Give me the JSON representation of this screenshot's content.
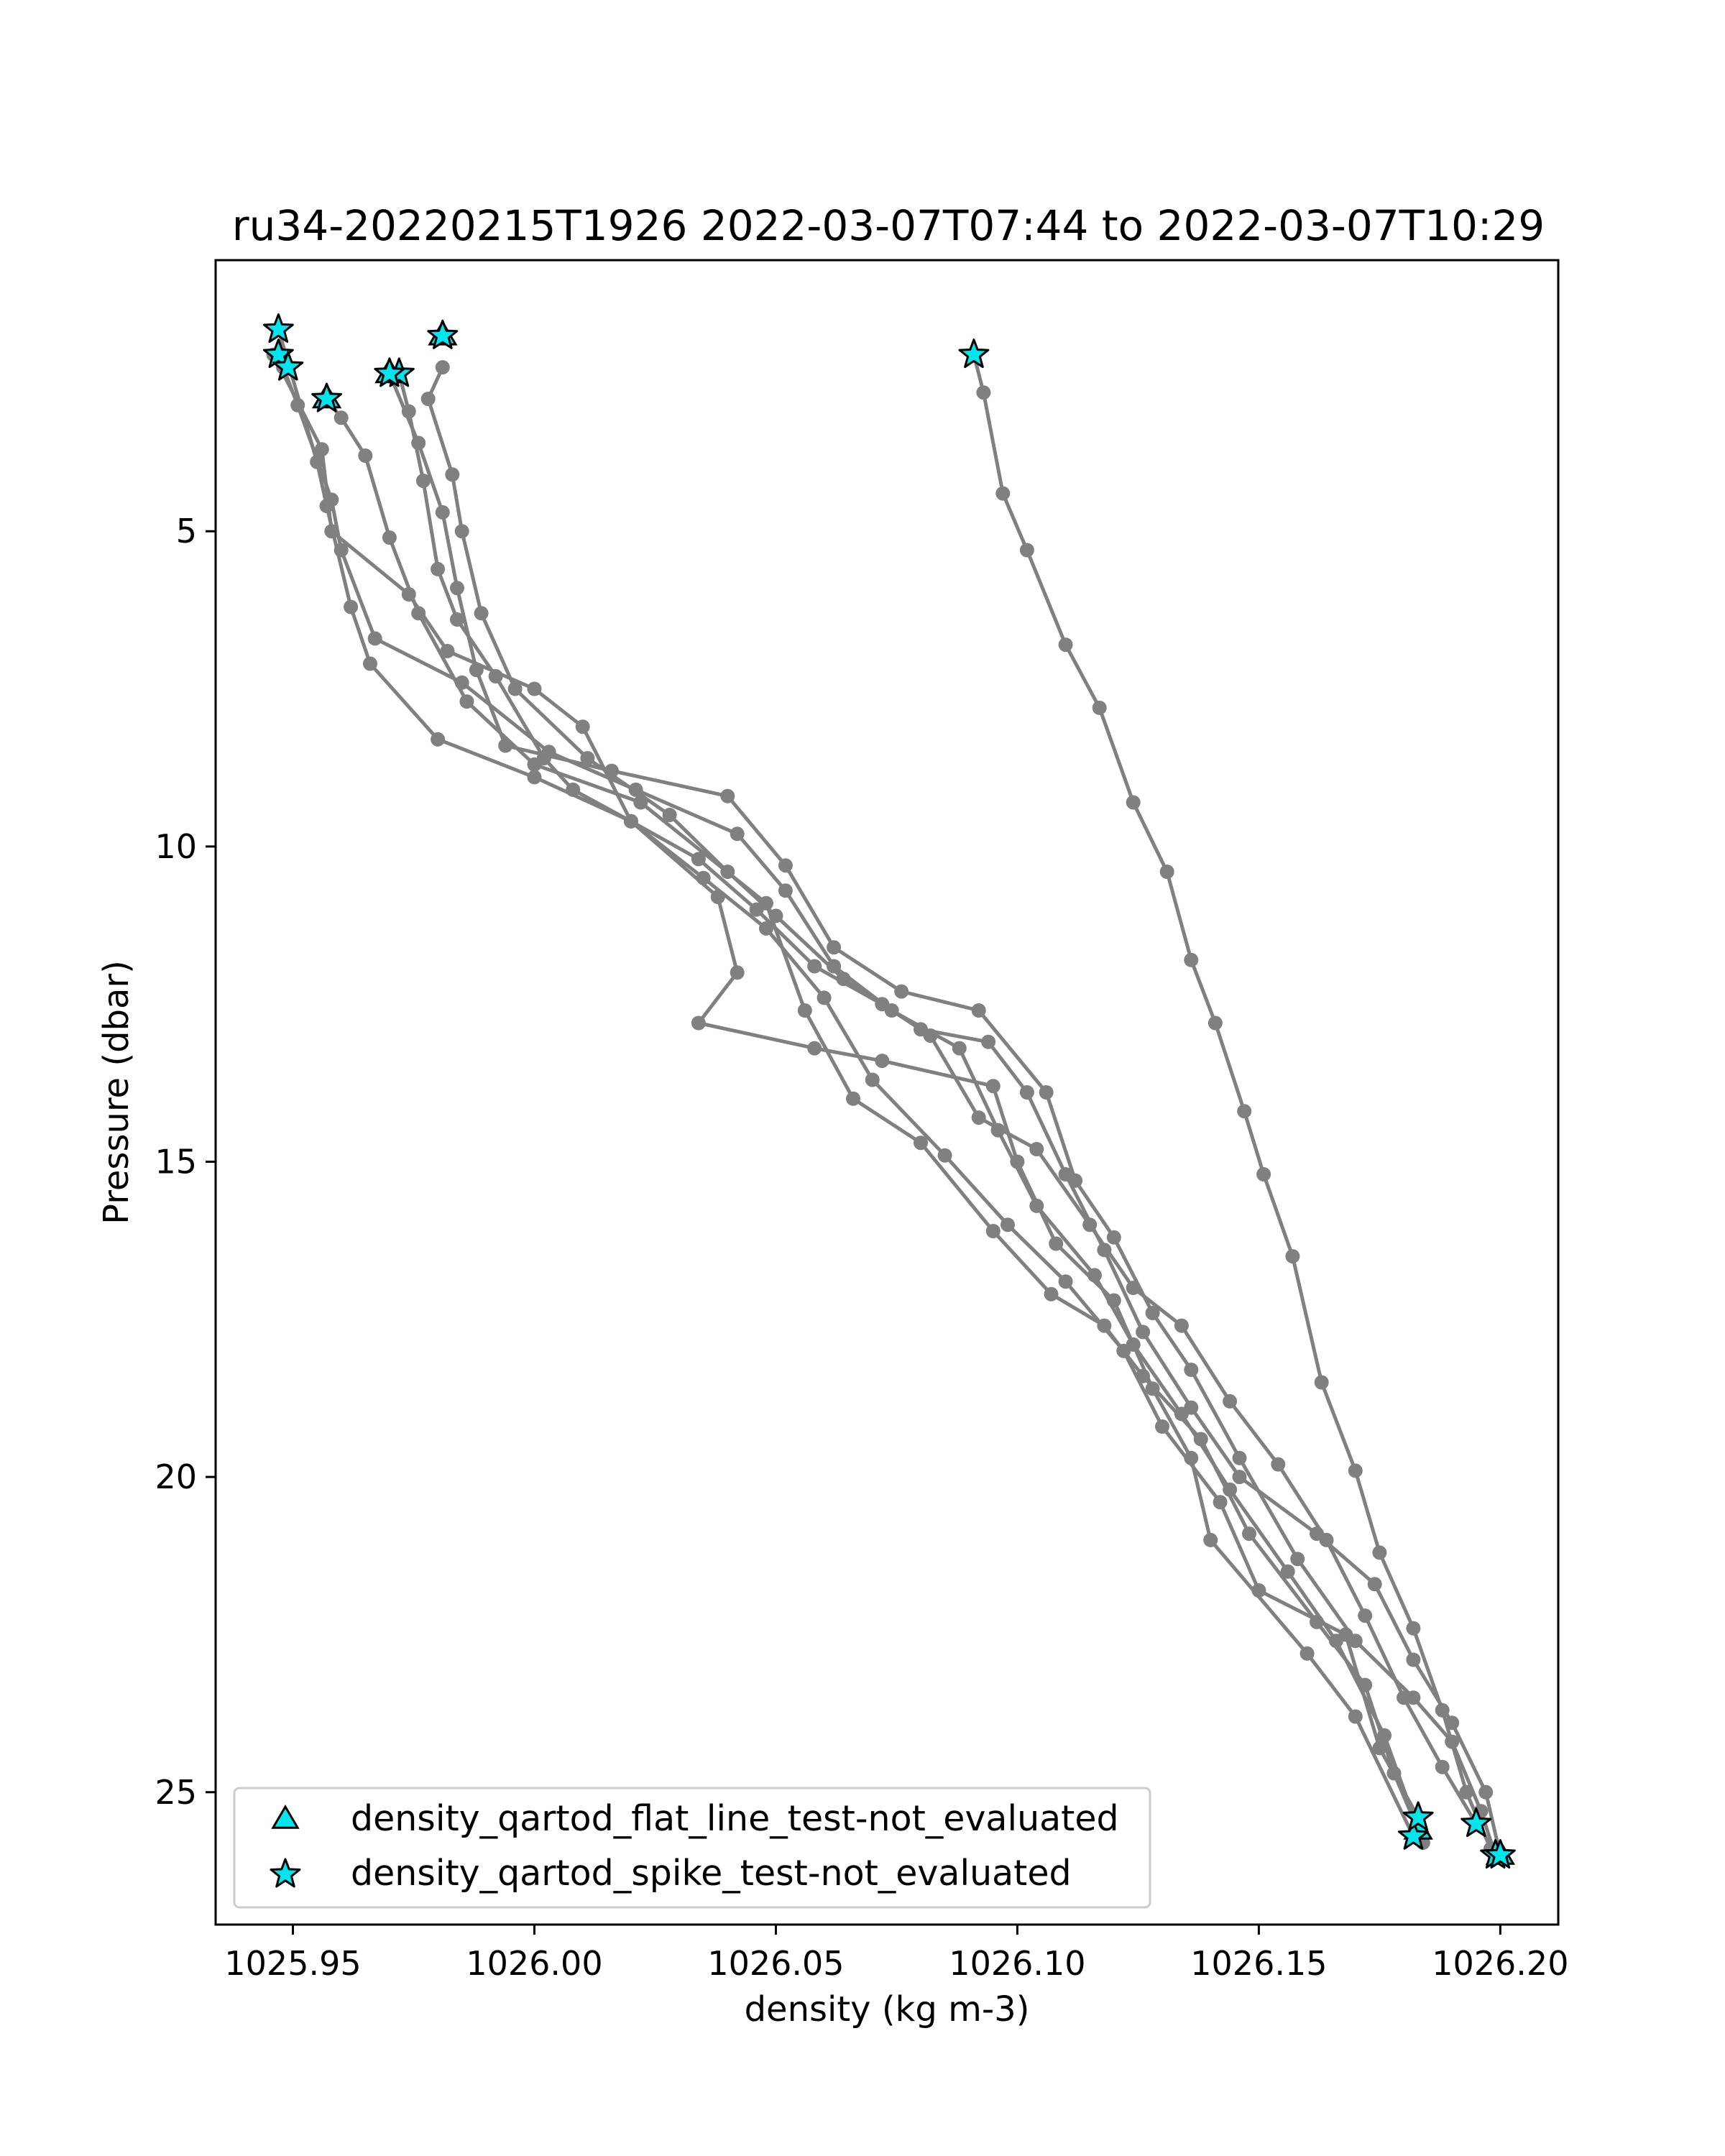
{
  "chart_data": {
    "type": "line",
    "title": "ru34-20220215T1926 2022-03-07T07:44 to 2022-03-07T10:29",
    "xlabel": "density (kg m-3)",
    "ylabel": "Pressure (dbar)",
    "xlim": [
      1025.934,
      1026.212
    ],
    "ylim": [
      27.1,
      0.7
    ],
    "y_inverted": true,
    "grid": false,
    "legend_position": "lower left",
    "xticks": [
      1025.95,
      1026.0,
      1026.05,
      1026.1,
      1026.15,
      1026.2
    ],
    "xtick_labels": [
      "1025.95",
      "1026.00",
      "1026.05",
      "1026.10",
      "1026.15",
      "1026.20"
    ],
    "yticks": [
      5,
      10,
      15,
      20,
      25
    ],
    "ytick_labels": [
      "5",
      "10",
      "15",
      "20",
      "25"
    ],
    "colors": {
      "profile_line": "#808080",
      "marker_fill": "#00e5ee",
      "marker_edge": "#000000"
    },
    "legend": [
      {
        "label": "density_qartod_flat_line_test-not_evaluated",
        "marker": "triangle"
      },
      {
        "label": "density_qartod_spike_test-not_evaluated",
        "marker": "star"
      }
    ],
    "series": [
      {
        "points": [
          [
            1025.947,
            1.8
          ],
          [
            1025.955,
            3.9
          ],
          [
            1025.957,
            4.6
          ],
          [
            1025.962,
            6.2
          ],
          [
            1025.966,
            7.1
          ],
          [
            1025.98,
            8.3
          ],
          [
            1026.0,
            8.9
          ],
          [
            1026.02,
            9.6
          ],
          [
            1026.038,
            10.8
          ],
          [
            1026.042,
            12.0
          ],
          [
            1026.034,
            12.8
          ],
          [
            1026.058,
            13.2
          ],
          [
            1026.072,
            13.4
          ],
          [
            1026.095,
            13.8
          ],
          [
            1026.1,
            15.0
          ],
          [
            1026.108,
            16.3
          ],
          [
            1026.12,
            17.2
          ],
          [
            1026.128,
            18.6
          ],
          [
            1026.136,
            19.7
          ],
          [
            1026.14,
            21.0
          ],
          [
            1026.16,
            22.8
          ],
          [
            1026.17,
            23.8
          ],
          [
            1026.182,
            25.7
          ]
        ]
      },
      {
        "points": [
          [
            1025.946,
            2.2
          ],
          [
            1025.956,
            3.7
          ],
          [
            1025.958,
            5.0
          ],
          [
            1025.974,
            6.0
          ],
          [
            1025.982,
            6.9
          ],
          [
            1026.0,
            7.5
          ],
          [
            1026.01,
            8.1
          ],
          [
            1026.02,
            9.6
          ],
          [
            1026.035,
            10.5
          ],
          [
            1026.048,
            11.3
          ],
          [
            1026.06,
            12.4
          ],
          [
            1026.07,
            13.7
          ],
          [
            1026.085,
            14.9
          ],
          [
            1026.098,
            16.0
          ],
          [
            1026.11,
            16.9
          ],
          [
            1026.122,
            18.0
          ],
          [
            1026.13,
            19.2
          ],
          [
            1026.142,
            20.4
          ],
          [
            1026.15,
            21.8
          ],
          [
            1026.168,
            22.5
          ],
          [
            1026.175,
            24.3
          ],
          [
            1026.183,
            25.4
          ]
        ]
      },
      {
        "points": [
          [
            1025.948,
            2.4
          ],
          [
            1025.951,
            3.0
          ],
          [
            1025.958,
            4.5
          ],
          [
            1025.96,
            5.3
          ],
          [
            1025.967,
            6.7
          ],
          [
            1025.985,
            7.4
          ],
          [
            1026.003,
            8.5
          ],
          [
            1026.021,
            9.1
          ],
          [
            1026.042,
            9.8
          ],
          [
            1026.052,
            10.7
          ],
          [
            1026.062,
            11.9
          ],
          [
            1026.074,
            12.6
          ],
          [
            1026.088,
            13.2
          ],
          [
            1026.096,
            14.5
          ],
          [
            1026.104,
            15.7
          ],
          [
            1026.116,
            16.8
          ],
          [
            1026.124,
            17.9
          ],
          [
            1026.134,
            19.0
          ],
          [
            1026.144,
            20.2
          ],
          [
            1026.156,
            21.5
          ],
          [
            1026.166,
            22.6
          ],
          [
            1026.176,
            24.1
          ],
          [
            1026.184,
            25.8
          ]
        ]
      },
      {
        "points": [
          [
            1025.957,
            2.9
          ],
          [
            1025.96,
            3.2
          ],
          [
            1025.965,
            3.8
          ],
          [
            1025.97,
            5.1
          ],
          [
            1025.976,
            6.3
          ],
          [
            1025.986,
            7.7
          ],
          [
            1026.0,
            8.7
          ],
          [
            1026.022,
            9.3
          ],
          [
            1026.048,
            10.9
          ],
          [
            1026.056,
            12.6
          ],
          [
            1026.066,
            14.0
          ],
          [
            1026.08,
            14.7
          ],
          [
            1026.095,
            16.1
          ],
          [
            1026.107,
            17.1
          ],
          [
            1026.118,
            17.6
          ],
          [
            1026.126,
            18.4
          ],
          [
            1026.138,
            19.4
          ],
          [
            1026.148,
            20.9
          ],
          [
            1026.162,
            22.3
          ],
          [
            1026.172,
            23.3
          ],
          [
            1026.178,
            24.7
          ],
          [
            1026.183,
            25.6
          ]
        ]
      },
      {
        "points": [
          [
            1025.972,
            2.5
          ],
          [
            1025.974,
            3.1
          ],
          [
            1025.977,
            4.2
          ],
          [
            1025.98,
            5.6
          ],
          [
            1025.984,
            6.4
          ],
          [
            1025.992,
            7.3
          ],
          [
            1026.002,
            8.6
          ],
          [
            1026.008,
            9.1
          ],
          [
            1026.02,
            9.6
          ],
          [
            1026.034,
            10.2
          ],
          [
            1026.046,
            11.0
          ],
          [
            1026.058,
            11.9
          ],
          [
            1026.072,
            12.5
          ],
          [
            1026.082,
            13.0
          ],
          [
            1026.092,
            14.3
          ],
          [
            1026.104,
            14.8
          ],
          [
            1026.115,
            16.0
          ],
          [
            1026.124,
            17.0
          ],
          [
            1026.134,
            17.6
          ],
          [
            1026.144,
            18.8
          ],
          [
            1026.154,
            19.8
          ],
          [
            1026.164,
            21.0
          ],
          [
            1026.172,
            22.2
          ],
          [
            1026.18,
            23.5
          ],
          [
            1026.188,
            24.6
          ],
          [
            1026.195,
            25.5
          ]
        ]
      },
      {
        "points": [
          [
            1025.97,
            2.5
          ],
          [
            1025.976,
            3.6
          ],
          [
            1025.981,
            4.7
          ],
          [
            1025.984,
            5.9
          ],
          [
            1025.988,
            7.2
          ],
          [
            1025.994,
            8.4
          ],
          [
            1026.016,
            8.8
          ],
          [
            1026.04,
            9.2
          ],
          [
            1026.052,
            10.3
          ],
          [
            1026.062,
            11.6
          ],
          [
            1026.076,
            12.3
          ],
          [
            1026.092,
            12.6
          ],
          [
            1026.106,
            13.9
          ],
          [
            1026.112,
            15.3
          ],
          [
            1026.12,
            16.2
          ],
          [
            1026.128,
            17.4
          ],
          [
            1026.136,
            18.3
          ],
          [
            1026.146,
            19.7
          ],
          [
            1026.158,
            21.3
          ],
          [
            1026.17,
            22.6
          ],
          [
            1026.182,
            23.5
          ],
          [
            1026.19,
            24.2
          ],
          [
            1026.196,
            25.3
          ],
          [
            1026.199,
            26.0
          ]
        ]
      },
      {
        "points": [
          [
            1025.981,
            2.4
          ],
          [
            1025.978,
            2.9
          ],
          [
            1025.983,
            4.1
          ],
          [
            1025.985,
            5.0
          ],
          [
            1025.989,
            6.3
          ],
          [
            1025.996,
            7.5
          ],
          [
            1026.011,
            8.6
          ],
          [
            1026.028,
            9.5
          ],
          [
            1026.04,
            10.4
          ],
          [
            1026.05,
            11.1
          ],
          [
            1026.064,
            12.1
          ],
          [
            1026.08,
            12.9
          ],
          [
            1026.094,
            13.1
          ],
          [
            1026.102,
            13.9
          ],
          [
            1026.11,
            15.2
          ],
          [
            1026.118,
            16.4
          ],
          [
            1026.126,
            17.7
          ],
          [
            1026.136,
            18.9
          ],
          [
            1026.146,
            20.0
          ],
          [
            1026.162,
            20.9
          ],
          [
            1026.174,
            21.7
          ],
          [
            1026.182,
            22.9
          ],
          [
            1026.19,
            23.9
          ],
          [
            1026.197,
            25.0
          ],
          [
            1026.2,
            26.0
          ]
        ]
      },
      {
        "points": [
          [
            1026.091,
            2.2
          ],
          [
            1026.093,
            2.8
          ],
          [
            1026.097,
            4.4
          ],
          [
            1026.102,
            5.3
          ],
          [
            1026.11,
            6.8
          ],
          [
            1026.117,
            7.8
          ],
          [
            1026.124,
            9.3
          ],
          [
            1026.131,
            10.4
          ],
          [
            1026.136,
            11.8
          ],
          [
            1026.141,
            12.8
          ],
          [
            1026.147,
            14.2
          ],
          [
            1026.151,
            15.2
          ],
          [
            1026.157,
            16.5
          ],
          [
            1026.163,
            18.5
          ],
          [
            1026.17,
            19.9
          ],
          [
            1026.175,
            21.2
          ],
          [
            1026.182,
            22.4
          ],
          [
            1026.188,
            23.7
          ],
          [
            1026.193,
            25.0
          ],
          [
            1026.198,
            25.9
          ]
        ]
      }
    ],
    "spike_test_not_evaluated": [
      [
        1025.947,
        1.8
      ],
      [
        1025.947,
        2.2
      ],
      [
        1025.949,
        2.4
      ],
      [
        1025.957,
        2.9
      ],
      [
        1025.972,
        2.5
      ],
      [
        1025.97,
        2.5
      ],
      [
        1025.981,
        1.9
      ],
      [
        1026.091,
        2.2
      ],
      [
        1026.182,
        25.7
      ],
      [
        1026.183,
        25.4
      ],
      [
        1026.195,
        25.5
      ],
      [
        1026.199,
        26.0
      ],
      [
        1026.2,
        26.0
      ]
    ],
    "flat_line_test_not_evaluated": [
      [
        1025.957,
        2.9
      ],
      [
        1025.97,
        2.5
      ],
      [
        1025.981,
        1.9
      ],
      [
        1026.183,
        25.6
      ],
      [
        1026.2,
        26.0
      ]
    ]
  }
}
